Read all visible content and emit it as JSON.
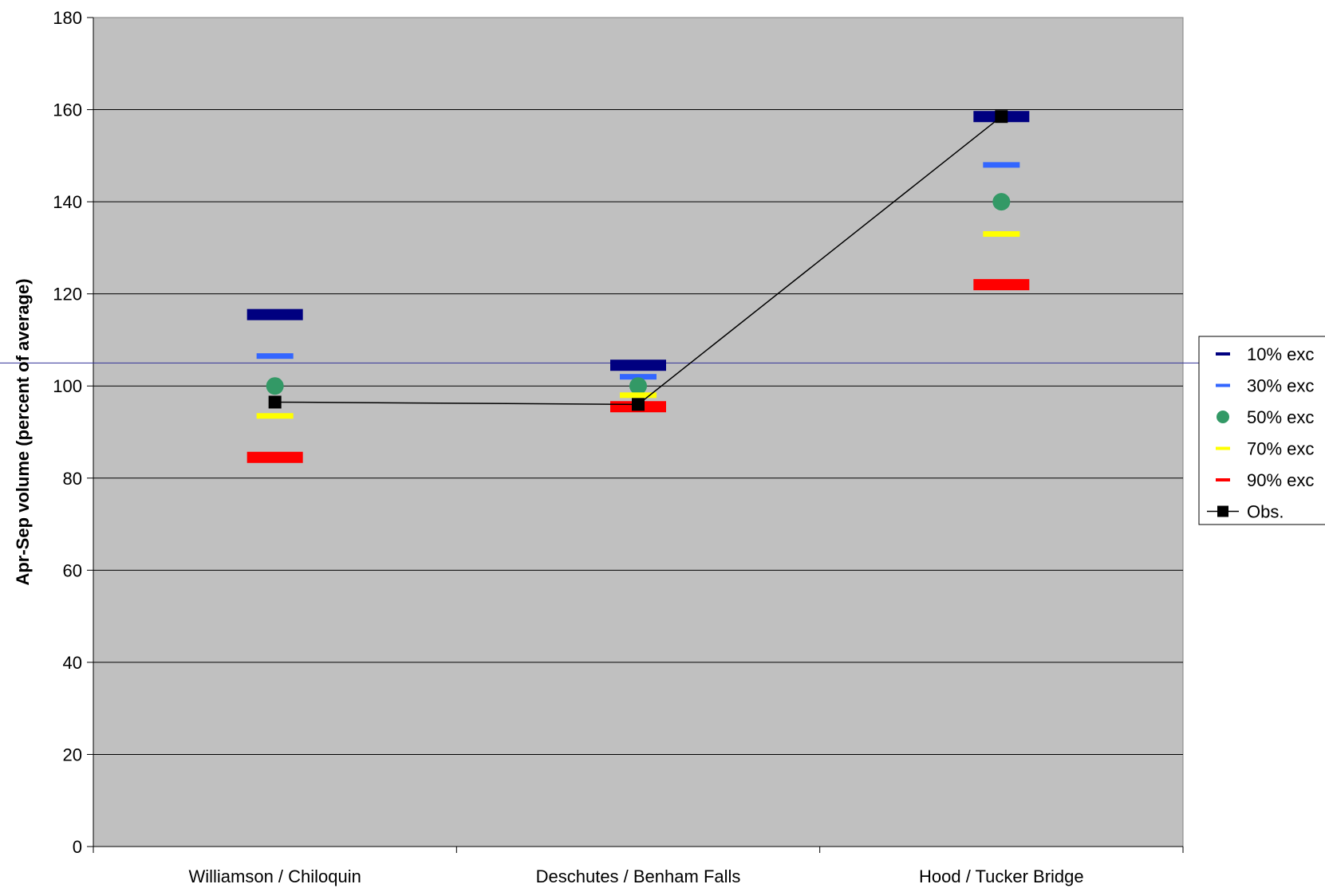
{
  "chart_data": {
    "type": "scatter",
    "ylabel": "Apr-Sep volume (percent of average)",
    "xlabel": "",
    "ylim": [
      0,
      180
    ],
    "yticks": [
      0,
      20,
      40,
      60,
      80,
      100,
      120,
      140,
      160,
      180
    ],
    "grid": true,
    "legend_position": "right",
    "reference_line": 105,
    "categories": [
      "Williamson / Chiloquin",
      "Deschutes / Benham Falls",
      "Hood / Tucker Bridge"
    ],
    "series": [
      {
        "name": "10% exc",
        "marker": "dash-thick",
        "color": "#000080",
        "values": [
          115.5,
          104.5,
          158.5
        ]
      },
      {
        "name": "30% exc",
        "marker": "dash-thin",
        "color": "#3366ff",
        "values": [
          106.5,
          102,
          148
        ]
      },
      {
        "name": "50% exc",
        "marker": "circle",
        "color": "#339966",
        "values": [
          100,
          100,
          140
        ]
      },
      {
        "name": "70% exc",
        "marker": "dash-thin",
        "color": "#ffff00",
        "values": [
          93.5,
          98,
          133
        ]
      },
      {
        "name": "90% exc",
        "marker": "dash-thick",
        "color": "#ff0000",
        "values": [
          84.5,
          95.5,
          122
        ]
      },
      {
        "name": "Obs.",
        "marker": "square-line",
        "color": "#000000",
        "values": [
          96.5,
          96,
          158.5
        ]
      }
    ],
    "colors": {
      "plot_bg": "#c0c0c0",
      "gridline": "#000000",
      "reference_line": "#333399"
    }
  }
}
